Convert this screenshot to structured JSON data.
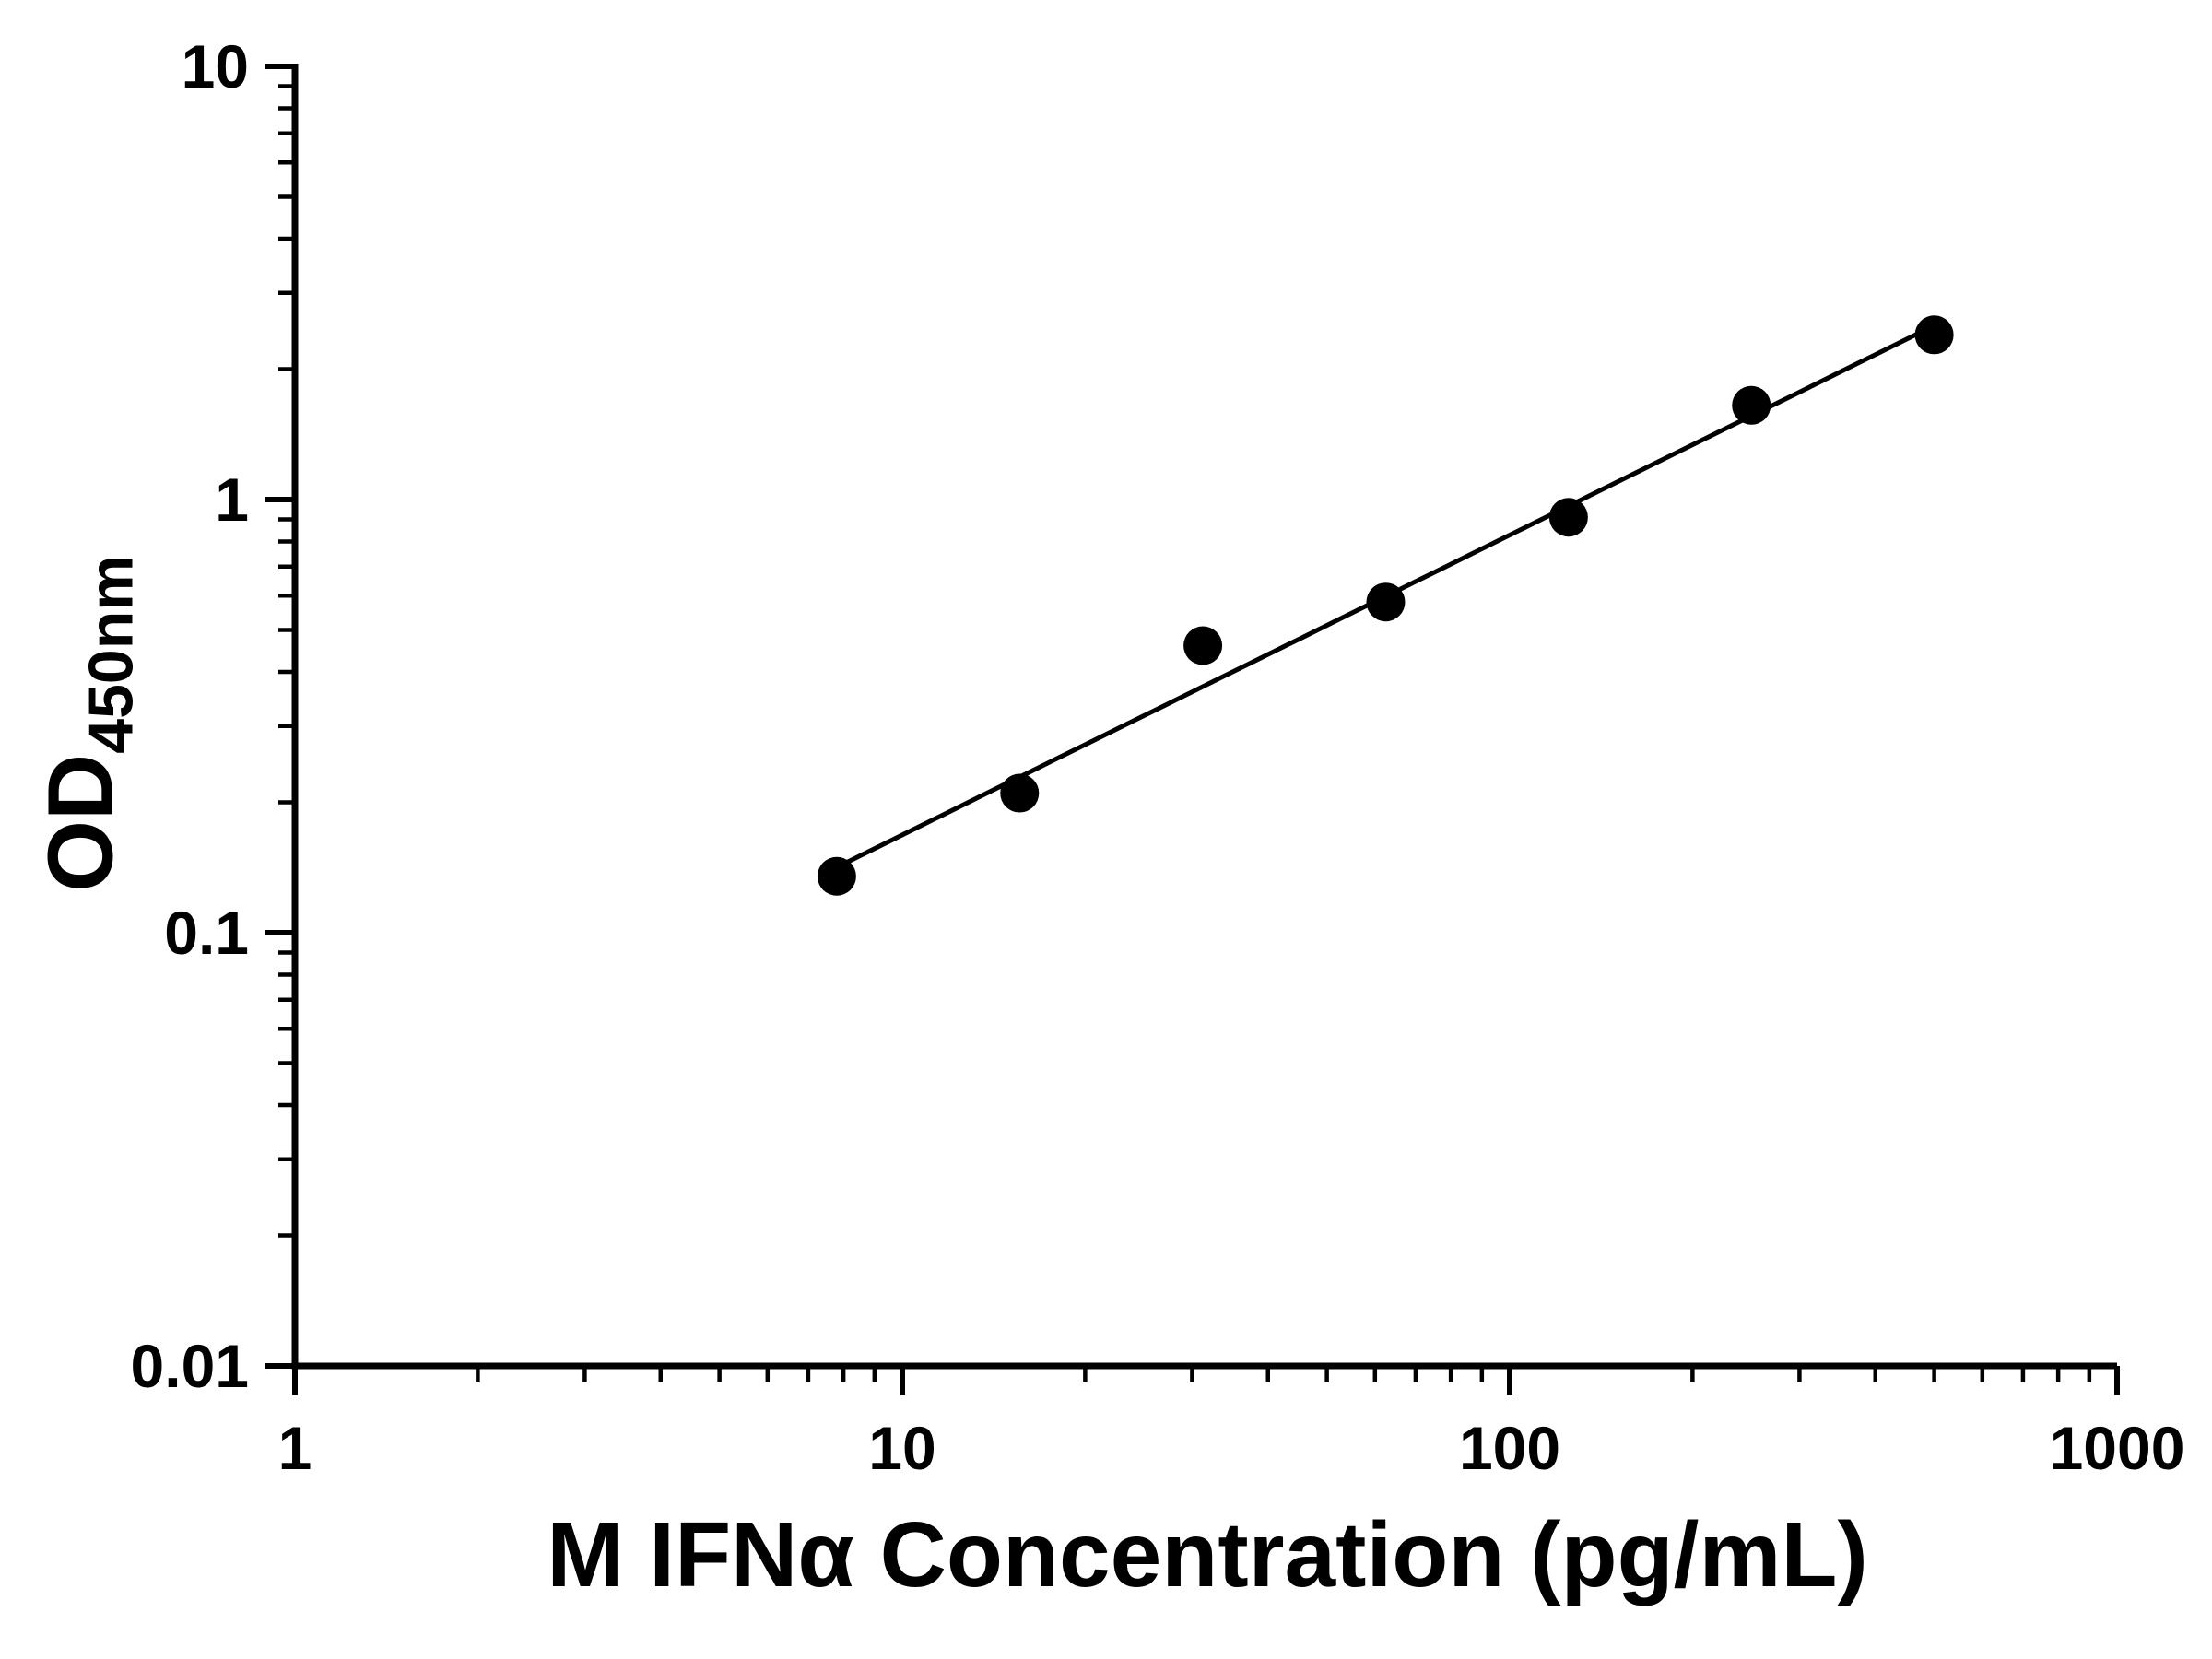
{
  "chart_data": {
    "type": "scatter",
    "title": "",
    "xlabel": "M IFNα Concentration (pg/mL)",
    "ylabel_main": "OD",
    "ylabel_sub": "450nm",
    "x_scale": "log",
    "y_scale": "log",
    "xlim": [
      1,
      1000
    ],
    "ylim": [
      0.01,
      10
    ],
    "x_tick_values": [
      1,
      10,
      100,
      1000
    ],
    "x_tick_labels": [
      "1",
      "10",
      "100",
      "1000"
    ],
    "y_tick_values": [
      0.01,
      0.1,
      1,
      10
    ],
    "y_tick_labels": [
      "0.01",
      "0.1",
      "1",
      "10"
    ],
    "grid": false,
    "legend": "none",
    "marker": {
      "shape": "circle",
      "color": "#000000",
      "radius_px": 21
    },
    "line_color": "#000000",
    "series": [
      {
        "points": [
          {
            "x": 7.8,
            "y": 0.135
          },
          {
            "x": 15.6,
            "y": 0.21
          },
          {
            "x": 31.25,
            "y": 0.46
          },
          {
            "x": 62.5,
            "y": 0.58
          },
          {
            "x": 125,
            "y": 0.91
          },
          {
            "x": 250,
            "y": 1.65
          },
          {
            "x": 500,
            "y": 2.4
          }
        ]
      }
    ],
    "trendline": {
      "type": "log-log-linear-fit",
      "x_start": 7.8,
      "x_end": 500
    }
  }
}
